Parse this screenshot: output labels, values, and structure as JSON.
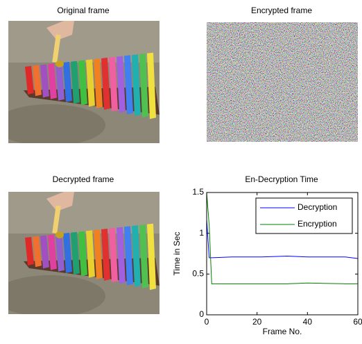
{
  "images": [
    {
      "title": "Original frame"
    },
    {
      "title": "Encrypted frame"
    },
    {
      "title": "Decrypted frame"
    }
  ],
  "chart_data": {
    "type": "line",
    "title": "En-Decryption Time",
    "x_label": "Frame No.",
    "y_label": "Time in Sec",
    "x": [
      0,
      1,
      2,
      10,
      22,
      32,
      40,
      55,
      60
    ],
    "series": [
      {
        "name": "Decryption",
        "color": "#0000ff",
        "values": [
          1.17,
          0.7,
          0.7,
          0.71,
          0.71,
          0.72,
          0.71,
          0.71,
          0.69
        ]
      },
      {
        "name": "Encryption",
        "color": "#008000",
        "values": [
          1.5,
          1.1,
          0.38,
          0.38,
          0.38,
          0.38,
          0.39,
          0.38,
          0.38
        ]
      }
    ],
    "xlim": [
      0,
      60
    ],
    "ylim": [
      0,
      1.5
    ],
    "xticks": [
      0,
      20,
      40,
      60
    ],
    "yticks": [
      0,
      0.5,
      1,
      1.5
    ],
    "legend": "upper right",
    "grid": false
  }
}
